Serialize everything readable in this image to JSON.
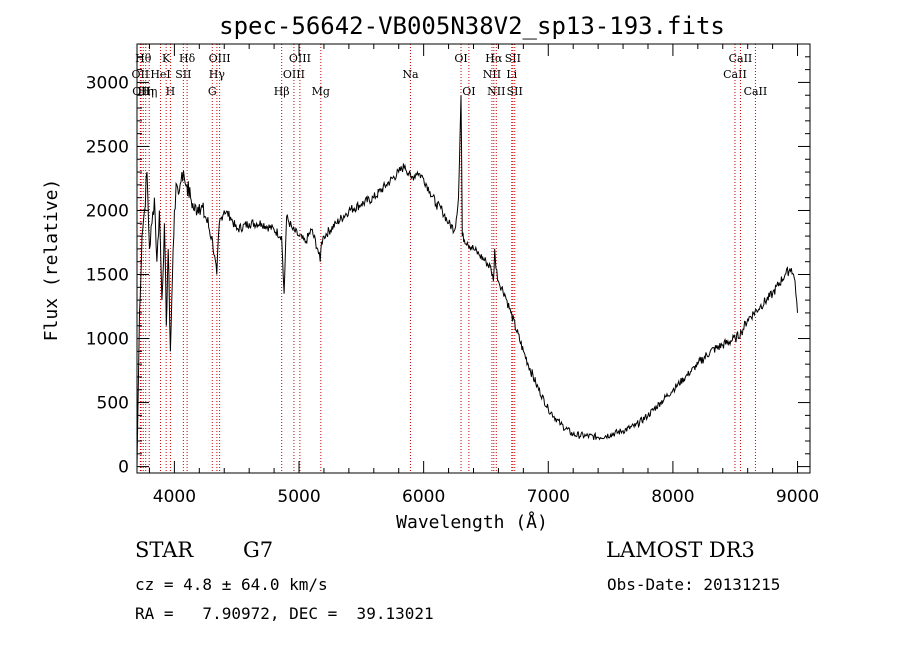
{
  "chart_data": {
    "type": "line",
    "title": "spec-56642-VB005N38V2_sp13-193.fits",
    "xlabel": "Wavelength (Å)",
    "ylabel": "Flux (relative)",
    "xlim": [
      3700,
      9100
    ],
    "ylim": [
      -50,
      3300
    ],
    "xticks": [
      4000,
      5000,
      6000,
      7000,
      8000,
      9000
    ],
    "yticks": [
      0,
      500,
      1000,
      1500,
      2000,
      2500,
      3000
    ],
    "series": [
      {
        "name": "flux",
        "x": [
          3700,
          3720,
          3740,
          3760,
          3780,
          3800,
          3820,
          3840,
          3860,
          3880,
          3900,
          3920,
          3935,
          3950,
          3968,
          3985,
          4000,
          4020,
          4040,
          4060,
          4080,
          4100,
          4130,
          4160,
          4200,
          4250,
          4300,
          4340,
          4360,
          4400,
          4450,
          4500,
          4600,
          4700,
          4800,
          4860,
          4880,
          4900,
          4950,
          5000,
          5050,
          5100,
          5150,
          5170,
          5180,
          5200,
          5300,
          5400,
          5500,
          5600,
          5700,
          5800,
          5850,
          5900,
          5950,
          6000,
          6050,
          6100,
          6150,
          6200,
          6250,
          6280,
          6300,
          6310,
          6350,
          6400,
          6450,
          6500,
          6540,
          6560,
          6570,
          6580,
          6600,
          6650,
          6700,
          6800,
          6900,
          7000,
          7100,
          7200,
          7300,
          7400,
          7500,
          7600,
          7700,
          7800,
          7900,
          8000,
          8100,
          8200,
          8300,
          8400,
          8500,
          8550,
          8600,
          8700,
          8800,
          8900,
          8950,
          8980,
          9000
        ],
        "y": [
          0,
          1200,
          1800,
          2000,
          2300,
          1700,
          1900,
          2100,
          1600,
          2000,
          1300,
          1900,
          1100,
          1700,
          900,
          1500,
          2000,
          2200,
          2150,
          2300,
          2250,
          2200,
          2100,
          2000,
          2050,
          1950,
          1800,
          1500,
          1900,
          2000,
          1950,
          1850,
          1900,
          1900,
          1850,
          1800,
          1350,
          1950,
          1850,
          1800,
          1750,
          1850,
          1700,
          1600,
          1750,
          1800,
          1900,
          2000,
          2050,
          2100,
          2200,
          2300,
          2350,
          2250,
          2300,
          2250,
          2150,
          2050,
          2000,
          1900,
          1850,
          2100,
          2900,
          1800,
          1750,
          1700,
          1650,
          1600,
          1550,
          1450,
          1700,
          1550,
          1450,
          1350,
          1200,
          900,
          650,
          450,
          330,
          250,
          240,
          230,
          250,
          280,
          320,
          400,
          500,
          600,
          700,
          800,
          900,
          950,
          1000,
          1050,
          1150,
          1250,
          1350,
          1500,
          1550,
          1450,
          1200
        ]
      }
    ],
    "lines": [
      {
        "x": 3750,
        "label": "Hθ",
        "row": 0
      },
      {
        "x": 3727,
        "label": "OII",
        "row": 1
      },
      {
        "x": 3733,
        "label": "OII",
        "row": 2
      },
      {
        "x": 3770,
        "label": "Hη",
        "row": 2
      },
      {
        "x": 3798,
        "label": "Hη",
        "row": 2
      },
      {
        "x": 3889,
        "label": "HeI",
        "row": 1
      },
      {
        "x": 3934,
        "label": "K",
        "row": 0
      },
      {
        "x": 3968,
        "label": "H",
        "row": 2
      },
      {
        "x": 4072,
        "label": "SII",
        "row": 1
      },
      {
        "x": 4102,
        "label": "Hδ",
        "row": 0
      },
      {
        "x": 4304,
        "label": "G",
        "row": 2
      },
      {
        "x": 4341,
        "label": "Hγ",
        "row": 1
      },
      {
        "x": 4363,
        "label": "OIII",
        "row": 0
      },
      {
        "x": 4861,
        "label": "Hβ",
        "row": 2
      },
      {
        "x": 4959,
        "label": "OIII",
        "row": 1
      },
      {
        "x": 5007,
        "label": "OIII",
        "row": 0
      },
      {
        "x": 5175,
        "label": "Mg",
        "row": 2
      },
      {
        "x": 5894,
        "label": "Na",
        "row": 1
      },
      {
        "x": 6300,
        "label": "OI",
        "row": 0
      },
      {
        "x": 6363,
        "label": "OI",
        "row": 2
      },
      {
        "x": 6548,
        "label": "NII",
        "row": 1
      },
      {
        "x": 6563,
        "label": "Hα",
        "row": 0
      },
      {
        "x": 6583,
        "label": "NII",
        "row": 2
      },
      {
        "x": 6707,
        "label": "Li",
        "row": 1
      },
      {
        "x": 6716,
        "label": "SII",
        "row": 0
      },
      {
        "x": 6731,
        "label": "SII",
        "row": 2
      },
      {
        "x": 8498,
        "label": "CaII",
        "row": 1
      },
      {
        "x": 8542,
        "label": "CaII",
        "row": 0
      },
      {
        "x": 8662,
        "label": "CaII",
        "row": 2
      }
    ],
    "line_color": "#cc0000"
  },
  "info": {
    "object_class": "STAR",
    "subclass": "G7",
    "survey": "LAMOST DR3",
    "redshift": "cz = 4.8 ± 64.0 km/s",
    "obs_date": "Obs-Date: 20131215",
    "coords": "RA =   7.90972, DEC =  39.13021"
  }
}
